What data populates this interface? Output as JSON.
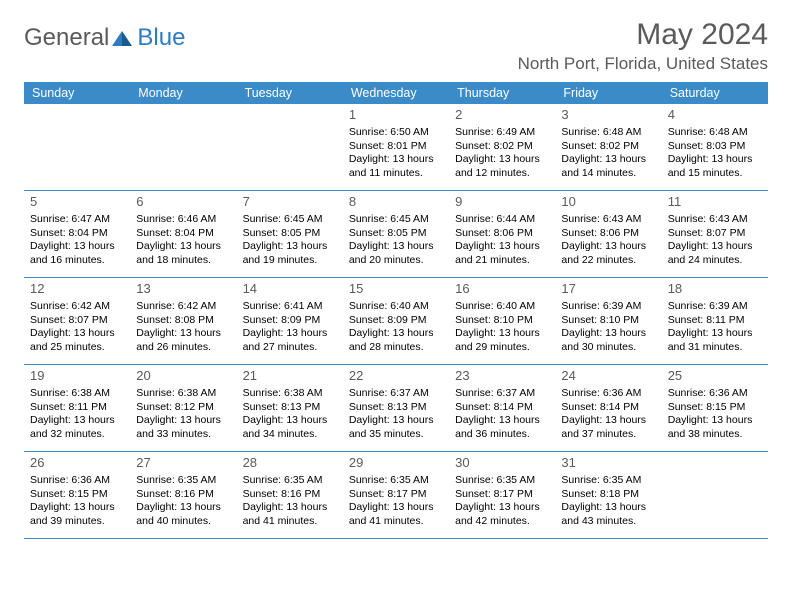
{
  "logo": {
    "text1": "General",
    "text2": "Blue"
  },
  "title": "May 2024",
  "location": "North Port, Florida, United States",
  "colors": {
    "header_bg": "#3b8bc9",
    "header_text": "#ffffff",
    "text_muted": "#5a5a5a",
    "logo_blue": "#2f7bbf",
    "border": "#3b8bc9"
  },
  "weekdays": [
    "Sunday",
    "Monday",
    "Tuesday",
    "Wednesday",
    "Thursday",
    "Friday",
    "Saturday"
  ],
  "weeks": [
    [
      {
        "n": "",
        "sr": "",
        "ss": "",
        "dl": ""
      },
      {
        "n": "",
        "sr": "",
        "ss": "",
        "dl": ""
      },
      {
        "n": "",
        "sr": "",
        "ss": "",
        "dl": ""
      },
      {
        "n": "1",
        "sr": "6:50 AM",
        "ss": "8:01 PM",
        "dl": "13 hours and 11 minutes."
      },
      {
        "n": "2",
        "sr": "6:49 AM",
        "ss": "8:02 PM",
        "dl": "13 hours and 12 minutes."
      },
      {
        "n": "3",
        "sr": "6:48 AM",
        "ss": "8:02 PM",
        "dl": "13 hours and 14 minutes."
      },
      {
        "n": "4",
        "sr": "6:48 AM",
        "ss": "8:03 PM",
        "dl": "13 hours and 15 minutes."
      }
    ],
    [
      {
        "n": "5",
        "sr": "6:47 AM",
        "ss": "8:04 PM",
        "dl": "13 hours and 16 minutes."
      },
      {
        "n": "6",
        "sr": "6:46 AM",
        "ss": "8:04 PM",
        "dl": "13 hours and 18 minutes."
      },
      {
        "n": "7",
        "sr": "6:45 AM",
        "ss": "8:05 PM",
        "dl": "13 hours and 19 minutes."
      },
      {
        "n": "8",
        "sr": "6:45 AM",
        "ss": "8:05 PM",
        "dl": "13 hours and 20 minutes."
      },
      {
        "n": "9",
        "sr": "6:44 AM",
        "ss": "8:06 PM",
        "dl": "13 hours and 21 minutes."
      },
      {
        "n": "10",
        "sr": "6:43 AM",
        "ss": "8:06 PM",
        "dl": "13 hours and 22 minutes."
      },
      {
        "n": "11",
        "sr": "6:43 AM",
        "ss": "8:07 PM",
        "dl": "13 hours and 24 minutes."
      }
    ],
    [
      {
        "n": "12",
        "sr": "6:42 AM",
        "ss": "8:07 PM",
        "dl": "13 hours and 25 minutes."
      },
      {
        "n": "13",
        "sr": "6:42 AM",
        "ss": "8:08 PM",
        "dl": "13 hours and 26 minutes."
      },
      {
        "n": "14",
        "sr": "6:41 AM",
        "ss": "8:09 PM",
        "dl": "13 hours and 27 minutes."
      },
      {
        "n": "15",
        "sr": "6:40 AM",
        "ss": "8:09 PM",
        "dl": "13 hours and 28 minutes."
      },
      {
        "n": "16",
        "sr": "6:40 AM",
        "ss": "8:10 PM",
        "dl": "13 hours and 29 minutes."
      },
      {
        "n": "17",
        "sr": "6:39 AM",
        "ss": "8:10 PM",
        "dl": "13 hours and 30 minutes."
      },
      {
        "n": "18",
        "sr": "6:39 AM",
        "ss": "8:11 PM",
        "dl": "13 hours and 31 minutes."
      }
    ],
    [
      {
        "n": "19",
        "sr": "6:38 AM",
        "ss": "8:11 PM",
        "dl": "13 hours and 32 minutes."
      },
      {
        "n": "20",
        "sr": "6:38 AM",
        "ss": "8:12 PM",
        "dl": "13 hours and 33 minutes."
      },
      {
        "n": "21",
        "sr": "6:38 AM",
        "ss": "8:13 PM",
        "dl": "13 hours and 34 minutes."
      },
      {
        "n": "22",
        "sr": "6:37 AM",
        "ss": "8:13 PM",
        "dl": "13 hours and 35 minutes."
      },
      {
        "n": "23",
        "sr": "6:37 AM",
        "ss": "8:14 PM",
        "dl": "13 hours and 36 minutes."
      },
      {
        "n": "24",
        "sr": "6:36 AM",
        "ss": "8:14 PM",
        "dl": "13 hours and 37 minutes."
      },
      {
        "n": "25",
        "sr": "6:36 AM",
        "ss": "8:15 PM",
        "dl": "13 hours and 38 minutes."
      }
    ],
    [
      {
        "n": "26",
        "sr": "6:36 AM",
        "ss": "8:15 PM",
        "dl": "13 hours and 39 minutes."
      },
      {
        "n": "27",
        "sr": "6:35 AM",
        "ss": "8:16 PM",
        "dl": "13 hours and 40 minutes."
      },
      {
        "n": "28",
        "sr": "6:35 AM",
        "ss": "8:16 PM",
        "dl": "13 hours and 41 minutes."
      },
      {
        "n": "29",
        "sr": "6:35 AM",
        "ss": "8:17 PM",
        "dl": "13 hours and 41 minutes."
      },
      {
        "n": "30",
        "sr": "6:35 AM",
        "ss": "8:17 PM",
        "dl": "13 hours and 42 minutes."
      },
      {
        "n": "31",
        "sr": "6:35 AM",
        "ss": "8:18 PM",
        "dl": "13 hours and 43 minutes."
      },
      {
        "n": "",
        "sr": "",
        "ss": "",
        "dl": ""
      }
    ]
  ],
  "labels": {
    "sunrise": "Sunrise:",
    "sunset": "Sunset:",
    "daylight": "Daylight:"
  }
}
